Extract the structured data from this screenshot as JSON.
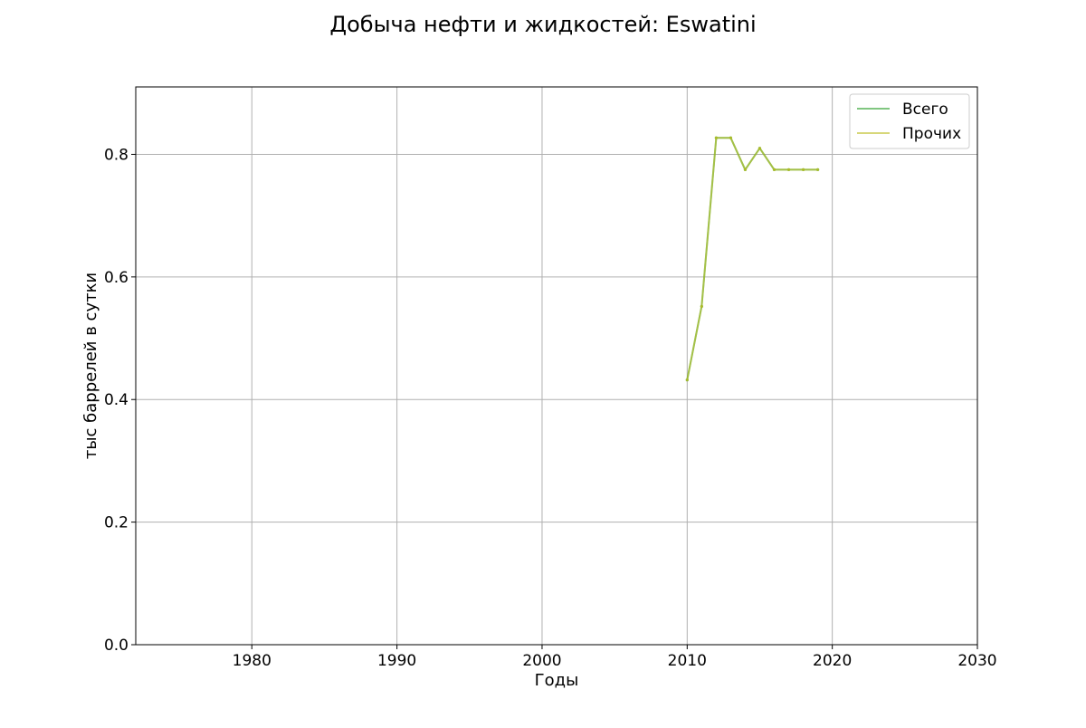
{
  "chart_data": {
    "type": "line",
    "title": "Добыча нефти и жидкостей: Eswatini",
    "xlabel": "Годы",
    "ylabel": "тыс баррелей в сутки",
    "xlim": [
      1972,
      2030
    ],
    "ylim": [
      0,
      0.91
    ],
    "x_ticks": [
      1980,
      1990,
      2000,
      2010,
      2020,
      2030
    ],
    "y_ticks": [
      0.0,
      0.2,
      0.4,
      0.6,
      0.8
    ],
    "y_tick_labels": [
      "0.0",
      "0.2",
      "0.4",
      "0.6",
      "0.8"
    ],
    "grid": true,
    "legend_position": "top-right",
    "x": [
      2010,
      2011,
      2012,
      2013,
      2014,
      2015,
      2016,
      2017,
      2018,
      2019
    ],
    "series": [
      {
        "name": "Всего",
        "color": "#2ca02c",
        "values": [
          0.432,
          0.552,
          0.827,
          0.827,
          0.775,
          0.81,
          0.775,
          0.775,
          0.775,
          0.775
        ]
      },
      {
        "name": "Прочих",
        "color": "#bcbd22",
        "values": [
          0.432,
          0.552,
          0.827,
          0.827,
          0.775,
          0.81,
          0.775,
          0.775,
          0.775,
          0.775
        ]
      }
    ]
  }
}
